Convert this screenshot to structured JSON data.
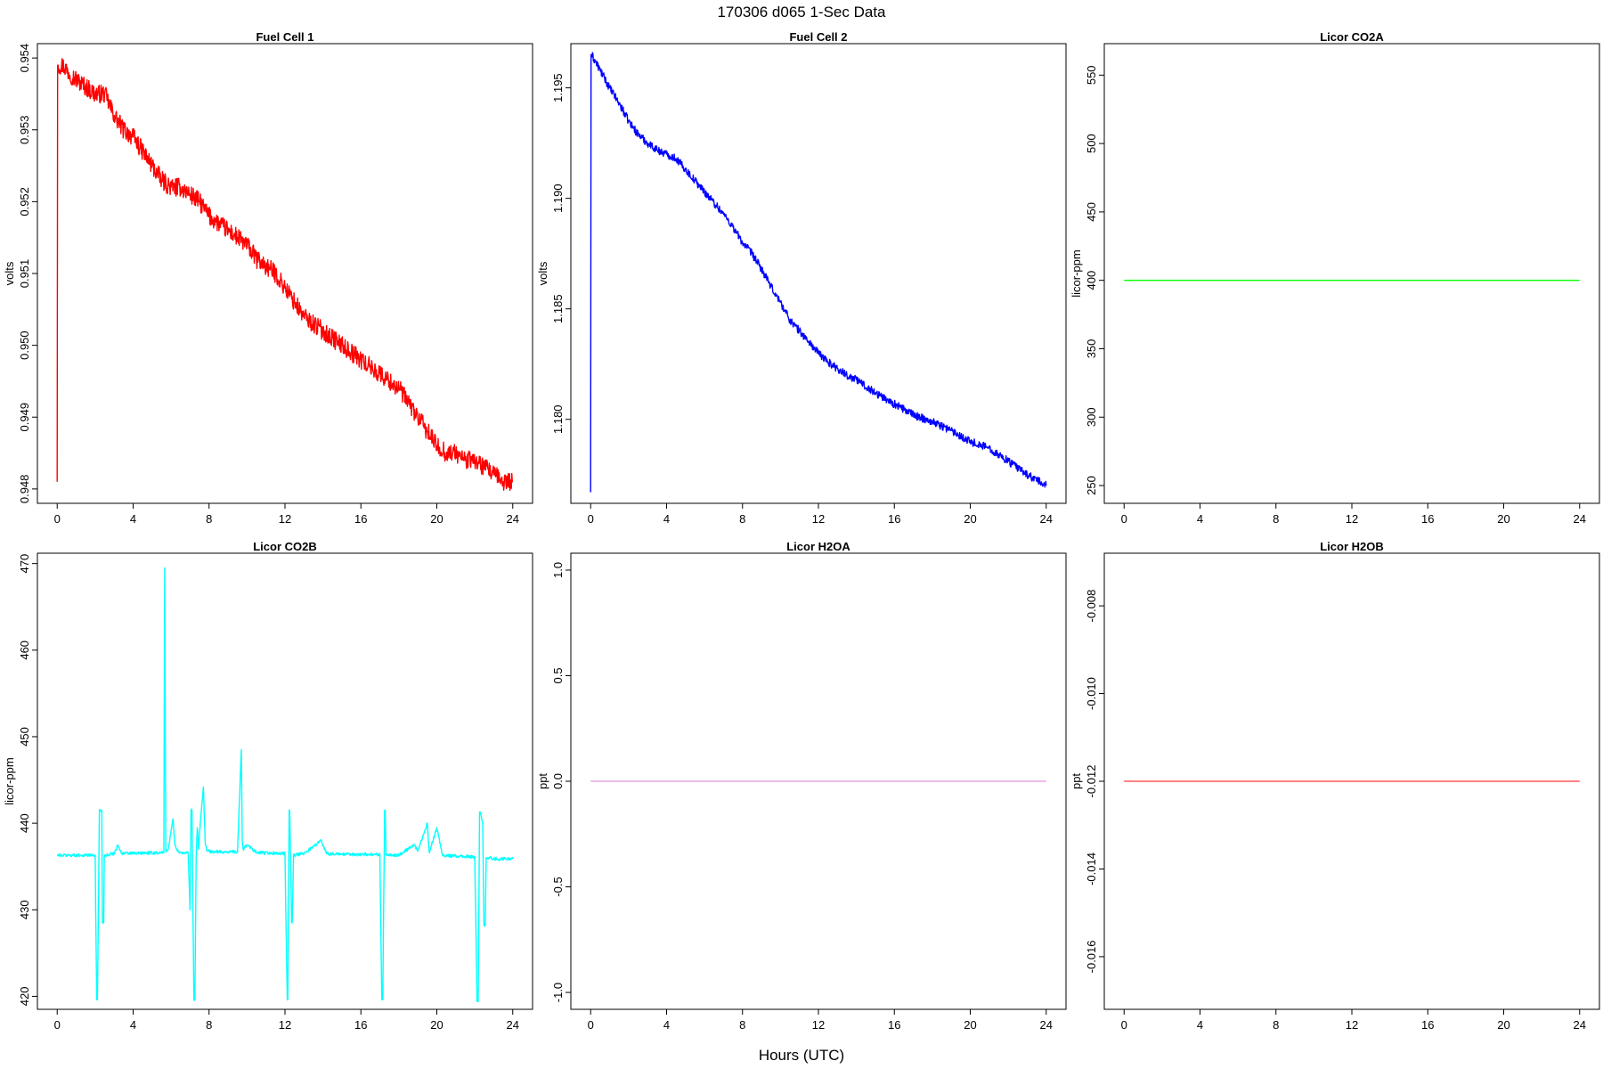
{
  "figure": {
    "title": "170306   d065   1-Sec Data",
    "xlabel": "Hours (UTC)"
  },
  "chart_data": [
    {
      "type": "line",
      "title": "Fuel Cell 1",
      "ylabel": "volts",
      "color": "#ff0000",
      "xlim": [
        0,
        24
      ],
      "ylim": [
        0.9478,
        0.9542
      ],
      "xticks": [
        0,
        4,
        8,
        12,
        16,
        20,
        24
      ],
      "yticks": [
        "0.948",
        "0.949",
        "0.950",
        "0.951",
        "0.952",
        "0.953",
        "0.954"
      ],
      "noise": 0.00013,
      "line_width": 1.4,
      "x": [
        0,
        0.02,
        0.05,
        0.3,
        0.6,
        1.0,
        1.5,
        2.0,
        2.5,
        3.0,
        3.5,
        4.0,
        4.5,
        5.0,
        5.5,
        6.0,
        6.5,
        7.0,
        7.5,
        8.0,
        8.5,
        9.0,
        9.5,
        10.0,
        10.5,
        11.0,
        11.5,
        12.0,
        12.5,
        13.0,
        13.5,
        14.0,
        14.5,
        15.0,
        15.5,
        16.0,
        16.5,
        17.0,
        17.5,
        18.0,
        18.5,
        19.0,
        19.5,
        20.0,
        20.5,
        21.0,
        21.5,
        22.0,
        22.5,
        23.0,
        23.5,
        24.0
      ],
      "y": [
        0.9481,
        0.9539,
        0.9539,
        0.9539,
        0.9538,
        0.9537,
        0.9536,
        0.9535,
        0.9535,
        0.9532,
        0.953,
        0.9529,
        0.9527,
        0.9525,
        0.9523,
        0.9522,
        0.9522,
        0.9521,
        0.952,
        0.9518,
        0.9517,
        0.9516,
        0.9515,
        0.9514,
        0.9512,
        0.9511,
        0.951,
        0.9508,
        0.9506,
        0.9504,
        0.9503,
        0.9502,
        0.9501,
        0.95,
        0.9499,
        0.9498,
        0.9497,
        0.9496,
        0.9495,
        0.9494,
        0.9492,
        0.949,
        0.9488,
        0.9486,
        0.9485,
        0.9485,
        0.9484,
        0.9484,
        0.9483,
        0.9482,
        0.9481,
        0.9481
      ]
    },
    {
      "type": "line",
      "title": "Fuel Cell 2",
      "ylabel": "volts",
      "color": "#0000ff",
      "xlim": [
        0,
        24
      ],
      "ylim": [
        1.1762,
        1.197
      ],
      "xticks": [
        0,
        4,
        8,
        12,
        16,
        20,
        24
      ],
      "yticks": [
        "1.180",
        "1.185",
        "1.190",
        "1.195"
      ],
      "noise": 0.00018,
      "line_width": 1.4,
      "x": [
        0,
        0.02,
        0.05,
        0.5,
        1.0,
        1.5,
        2.0,
        2.5,
        3.0,
        3.5,
        4.0,
        4.5,
        5.0,
        5.5,
        6.0,
        6.5,
        7.0,
        7.5,
        8.0,
        8.5,
        9.0,
        9.5,
        10.0,
        10.5,
        11.0,
        11.5,
        12.0,
        12.5,
        13.0,
        13.5,
        14.0,
        15.0,
        16.0,
        17.0,
        18.0,
        19.0,
        20.0,
        21.0,
        22.0,
        23.0,
        24.0
      ],
      "y": [
        1.1767,
        1.1965,
        1.1965,
        1.1958,
        1.195,
        1.1943,
        1.1935,
        1.1929,
        1.1925,
        1.1922,
        1.192,
        1.1918,
        1.1913,
        1.1908,
        1.1903,
        1.1898,
        1.1893,
        1.1887,
        1.188,
        1.1875,
        1.1868,
        1.186,
        1.1853,
        1.1845,
        1.184,
        1.1835,
        1.183,
        1.1826,
        1.1823,
        1.182,
        1.1818,
        1.1812,
        1.1807,
        1.1802,
        1.1799,
        1.1795,
        1.179,
        1.1787,
        1.1781,
        1.1775,
        1.177
      ]
    },
    {
      "type": "line",
      "title": "Licor CO2A",
      "ylabel": "licor-ppm",
      "color": "#00ff00",
      "xlim": [
        0,
        24
      ],
      "ylim": [
        237,
        573
      ],
      "xticks": [
        0,
        4,
        8,
        12,
        16,
        20,
        24
      ],
      "yticks": [
        "250",
        "300",
        "350",
        "400",
        "450",
        "500",
        "550"
      ],
      "noise": 0,
      "line_width": 1.3,
      "x": [
        0,
        24
      ],
      "y": [
        400,
        400
      ]
    },
    {
      "type": "line",
      "title": "Licor CO2B",
      "ylabel": "licor-ppm",
      "color": "#00ffff",
      "xlim": [
        0,
        24
      ],
      "ylim": [
        418.5,
        471.2
      ],
      "xticks": [
        0,
        4,
        8,
        12,
        16,
        20,
        24
      ],
      "yticks": [
        "420",
        "430",
        "440",
        "450",
        "460",
        "470"
      ],
      "noise": 0.18,
      "line_width": 1.4,
      "x": [
        0,
        1.0,
        2.0,
        2.08,
        2.12,
        2.2,
        2.22,
        2.35,
        2.38,
        2.45,
        2.48,
        3.0,
        3.2,
        3.4,
        5.5,
        5.62,
        5.66,
        5.72,
        5.85,
        6.1,
        6.2,
        6.3,
        6.5,
        6.9,
        7.0,
        7.05,
        7.1,
        7.2,
        7.25,
        7.32,
        7.38,
        7.45,
        7.5,
        7.7,
        7.8,
        7.9,
        8.2,
        9.5,
        9.7,
        9.75,
        9.8,
        10.0,
        10.5,
        12.0,
        12.12,
        12.15,
        12.22,
        12.25,
        12.35,
        12.38,
        12.45,
        13.0,
        13.9,
        14.2,
        15.0,
        17.0,
        17.1,
        17.15,
        17.25,
        17.28,
        17.32,
        17.4,
        18.0,
        18.8,
        19.0,
        19.5,
        19.6,
        20.0,
        20.3,
        21.0,
        22.0,
        22.12,
        22.18,
        22.25,
        22.3,
        22.42,
        22.48,
        22.55,
        22.6,
        22.7,
        23.0,
        24.0
      ],
      "y": [
        436.3,
        436.3,
        436.3,
        419.6,
        419.6,
        436.3,
        441.5,
        441.5,
        428.5,
        428.5,
        436.3,
        436.5,
        437.5,
        436.5,
        436.6,
        436.6,
        469.5,
        436.8,
        437.0,
        440.5,
        437.5,
        437.0,
        436.6,
        436.6,
        430.0,
        441.5,
        441.5,
        419.6,
        419.6,
        436.3,
        439.5,
        437.0,
        439.0,
        444.2,
        437.5,
        436.8,
        436.7,
        436.7,
        448.5,
        438.0,
        437.0,
        437.5,
        436.6,
        436.5,
        419.6,
        419.6,
        441.5,
        441.5,
        428.5,
        428.5,
        436.3,
        436.5,
        438.0,
        436.5,
        436.4,
        436.4,
        419.6,
        419.6,
        441.5,
        441.5,
        436.3,
        436.3,
        436.3,
        437.5,
        436.8,
        440.0,
        436.6,
        439.5,
        436.3,
        436.2,
        436.1,
        419.4,
        419.4,
        441.3,
        441.3,
        440.0,
        428.2,
        428.2,
        436.0,
        436.0,
        435.9,
        435.9
      ]
    },
    {
      "type": "line",
      "title": "Licor H2OA",
      "ylabel": "ppt",
      "color": "#dd77dd",
      "xlim": [
        0,
        24
      ],
      "ylim": [
        -1.08,
        1.08
      ],
      "xticks": [
        0,
        4,
        8,
        12,
        16,
        20,
        24
      ],
      "yticks": [
        "-1.0",
        "-0.5",
        "0.0",
        "0.5",
        "1.0"
      ],
      "noise": 0,
      "line_width": 1.0,
      "x": [
        0,
        24
      ],
      "y": [
        0,
        0
      ]
    },
    {
      "type": "line",
      "title": "Licor H2OB",
      "ylabel": "ppt",
      "color": "#ff0000",
      "xlim": [
        0,
        24
      ],
      "ylim": [
        -0.0172,
        -0.0068
      ],
      "xticks": [
        0,
        4,
        8,
        12,
        16,
        20,
        24
      ],
      "yticks": [
        "-0.016",
        "-0.014",
        "-0.012",
        "-0.010",
        "-0.008"
      ],
      "noise": 0,
      "line_width": 1.0,
      "x": [
        0,
        24
      ],
      "y": [
        -0.012,
        -0.012
      ]
    }
  ]
}
